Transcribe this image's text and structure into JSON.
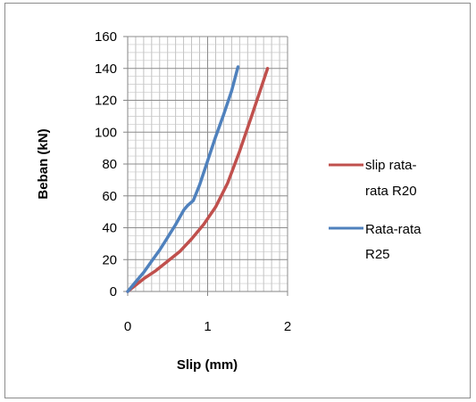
{
  "chart_data": {
    "type": "line",
    "title": "",
    "xlabel": "Slip (mm)",
    "ylabel": "Beban (kN)",
    "xlim": [
      0,
      2
    ],
    "ylim": [
      0,
      160
    ],
    "x_ticks": [
      "0",
      "1",
      "2"
    ],
    "y_ticks": [
      "0",
      "20",
      "40",
      "60",
      "80",
      "100",
      "120",
      "140",
      "160"
    ],
    "grid": true,
    "legend_position": "right",
    "series": [
      {
        "name": "slip rata-rata R20",
        "legend_lines": [
          "slip rata-",
          "rata R20"
        ],
        "color": "#c0504d",
        "x": [
          0,
          0.1,
          0.2,
          0.35,
          0.5,
          0.65,
          0.8,
          0.95,
          1.1,
          1.25,
          1.4,
          1.55,
          1.65,
          1.75
        ],
        "y": [
          0,
          4,
          8,
          13,
          19,
          25,
          33,
          42,
          53,
          68,
          88,
          110,
          125,
          140
        ]
      },
      {
        "name": "Rata-rata R25",
        "legend_lines": [
          "Rata-rata",
          "R25"
        ],
        "color": "#4f81bd",
        "x": [
          0,
          0.1,
          0.2,
          0.3,
          0.4,
          0.5,
          0.6,
          0.7,
          0.75,
          0.82,
          0.9,
          1.0,
          1.1,
          1.2,
          1.3,
          1.38
        ],
        "y": [
          0,
          6,
          12,
          19,
          26,
          34,
          42,
          51,
          54,
          57,
          67,
          82,
          97,
          111,
          126,
          141
        ]
      }
    ]
  }
}
